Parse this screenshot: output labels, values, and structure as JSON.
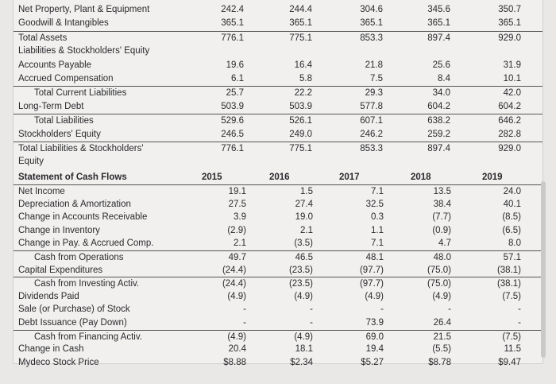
{
  "balance_sheet": {
    "rows": [
      {
        "label": "Net Property, Plant & Equipment",
        "values": [
          "242.4",
          "244.4",
          "304.6",
          "345.6",
          "350.7"
        ]
      },
      {
        "label": "Goodwill & Intangibles",
        "values": [
          "365.1",
          "365.1",
          "365.1",
          "365.1",
          "365.1"
        ]
      },
      {
        "label": "Total Assets",
        "values": [
          "776.1",
          "775.1",
          "853.3",
          "897.4",
          "929.0"
        ],
        "total": true
      },
      {
        "label": "Liabilities & Stockholders' Equity",
        "values": [
          "",
          "",
          "",
          "",
          ""
        ]
      },
      {
        "label": "Accounts Payable",
        "values": [
          "19.6",
          "16.4",
          "21.8",
          "25.6",
          "31.9"
        ]
      },
      {
        "label": "Accrued Compensation",
        "values": [
          "6.1",
          "5.8",
          "7.5",
          "8.4",
          "10.1"
        ]
      },
      {
        "label": "Total Current Liabilities",
        "values": [
          "25.7",
          "22.2",
          "29.3",
          "34.0",
          "42.0"
        ],
        "total": true,
        "indent": true
      },
      {
        "label": "Long-Term Debt",
        "values": [
          "503.9",
          "503.9",
          "577.8",
          "604.2",
          "604.2"
        ]
      },
      {
        "label": "Total Liabilities",
        "values": [
          "529.6",
          "526.1",
          "607.1",
          "638.2",
          "646.2"
        ],
        "total": true,
        "indent": true
      },
      {
        "label": "Stockholders' Equity",
        "values": [
          "246.5",
          "249.0",
          "246.2",
          "259.2",
          "282.8"
        ]
      },
      {
        "label": "Total Liabilities & Stockholders'",
        "values": [
          "776.1",
          "775.1",
          "853.3",
          "897.4",
          "929.0"
        ],
        "total": true
      },
      {
        "label": "Equity",
        "values": [
          "",
          "",
          "",
          "",
          ""
        ]
      }
    ]
  },
  "cash_flows": {
    "title": "Statement of Cash Flows",
    "years": [
      "2015",
      "2016",
      "2017",
      "2018",
      "2019"
    ],
    "rows": [
      {
        "label": "Net Income",
        "values": [
          "19.1",
          "1.5",
          "7.1",
          "13.5",
          "24.0"
        ],
        "total": true
      },
      {
        "label": "Depreciation & Amortization",
        "values": [
          "27.5",
          "27.4",
          "32.5",
          "38.4",
          "40.1"
        ]
      },
      {
        "label": "Change in Accounts Receivable",
        "values": [
          "3.9",
          "19.0",
          "0.3",
          "(7.7)",
          "(8.5)"
        ]
      },
      {
        "label": "Change in Inventory",
        "values": [
          "(2.9)",
          "2.1",
          "1.1",
          "(0.9)",
          "(6.5)"
        ]
      },
      {
        "label": "Change in Pay. & Accrued Comp.",
        "values": [
          "2.1",
          "(3.5)",
          "7.1",
          "4.7",
          "8.0"
        ]
      },
      {
        "label": "Cash from Operations",
        "values": [
          "49.7",
          "46.5",
          "48.1",
          "48.0",
          "57.1"
        ],
        "total": true,
        "indent": true
      },
      {
        "label": "Capital Expenditures",
        "values": [
          "(24.4)",
          "(23.5)",
          "(97.7)",
          "(75.0)",
          "(38.1)"
        ]
      },
      {
        "label": "Cash from Investing Activ.",
        "values": [
          "(24.4)",
          "(23.5)",
          "(97.7)",
          "(75.0)",
          "(38.1)"
        ],
        "total": true,
        "indent": true
      },
      {
        "label": "Dividends Paid",
        "values": [
          "(4.9)",
          "(4.9)",
          "(4.9)",
          "(4.9)",
          "(7.5)"
        ]
      },
      {
        "label": "Sale (or Purchase) of Stock",
        "values": [
          "-",
          "-",
          "-",
          "-",
          "-"
        ]
      },
      {
        "label": "Debt Issuance (Pay Down)",
        "values": [
          "-",
          "-",
          "73.9",
          "26.4",
          "-"
        ]
      },
      {
        "label": "Cash from Financing Activ.",
        "values": [
          "(4.9)",
          "(4.9)",
          "69.0",
          "21.5",
          "(7.5)"
        ],
        "total": true,
        "indent": true
      },
      {
        "label": "Change in Cash",
        "values": [
          "20.4",
          "18.1",
          "19.4",
          "(5.5)",
          "11.5"
        ]
      },
      {
        "label": "Mydeco Stock Price",
        "values": [
          "$8.88",
          "$2.34",
          "$5.27",
          "$8.78",
          "$9.47"
        ]
      }
    ]
  }
}
